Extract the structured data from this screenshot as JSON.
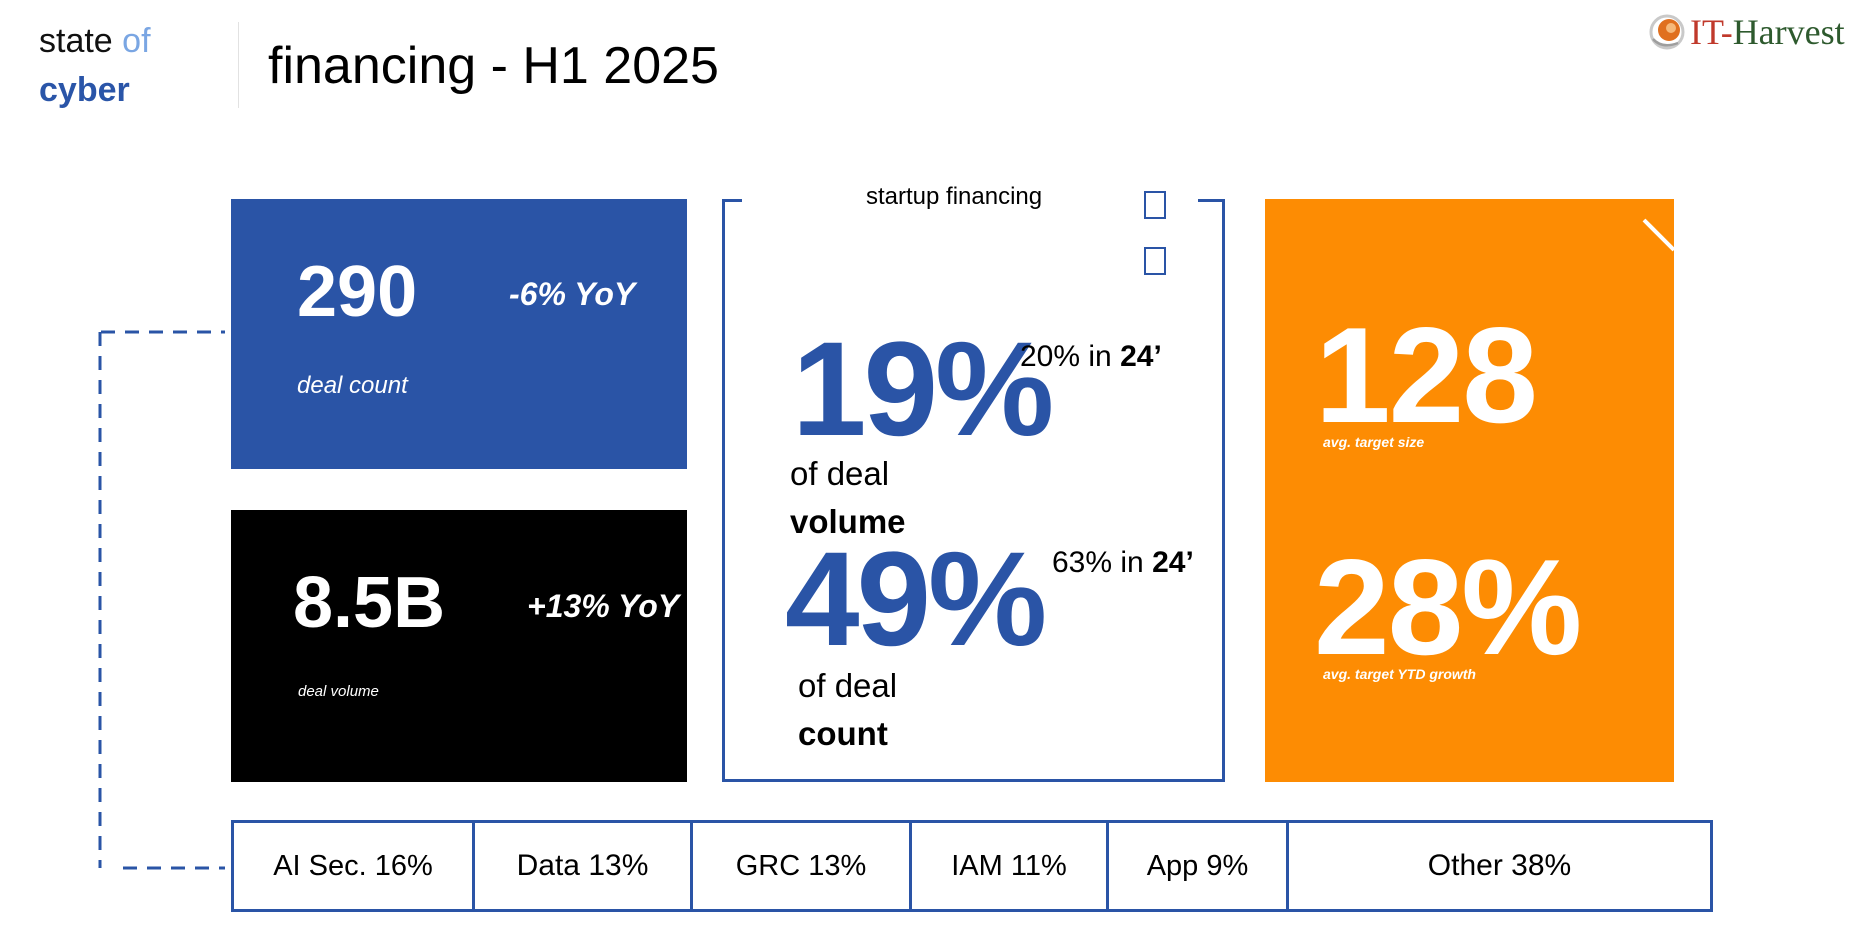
{
  "header": {
    "brand_state": "state",
    "brand_of": "of",
    "brand_cyber": "cyber",
    "title": "financing - H1 2025"
  },
  "logo": {
    "it": "IT",
    "dash": "-",
    "harvest": "Harvest",
    "icon": "swirl-logo-icon"
  },
  "deal_count_card": {
    "value": "290",
    "yoy": "-6% YoY",
    "label": "deal count",
    "color": "#2a54a6"
  },
  "deal_volume_card": {
    "value": "8.5B",
    "yoy": "+13% YoY",
    "label": "deal volume",
    "color": "#000000"
  },
  "startup_financing": {
    "title": "startup financing",
    "volume_pct": "19%",
    "volume_prev_prefix": "20% in ",
    "volume_prev_year": "24’",
    "volume_line1": "of deal",
    "volume_line2": "volume",
    "count_pct": "49%",
    "count_prev_prefix": "63% in ",
    "count_prev_year": "24’",
    "count_line1": "of deal",
    "count_line2": "count",
    "accent": "#2a54a6"
  },
  "target_card": {
    "size_value": "128",
    "size_label": "avg. target size",
    "growth_value": "28%",
    "growth_label": "avg. target YTD growth",
    "color": "#fd8c03"
  },
  "categories": [
    "AI Sec. 16%",
    "Data 13%",
    "GRC 13%",
    "IAM 11%",
    "App 9%",
    "Other 38%"
  ]
}
